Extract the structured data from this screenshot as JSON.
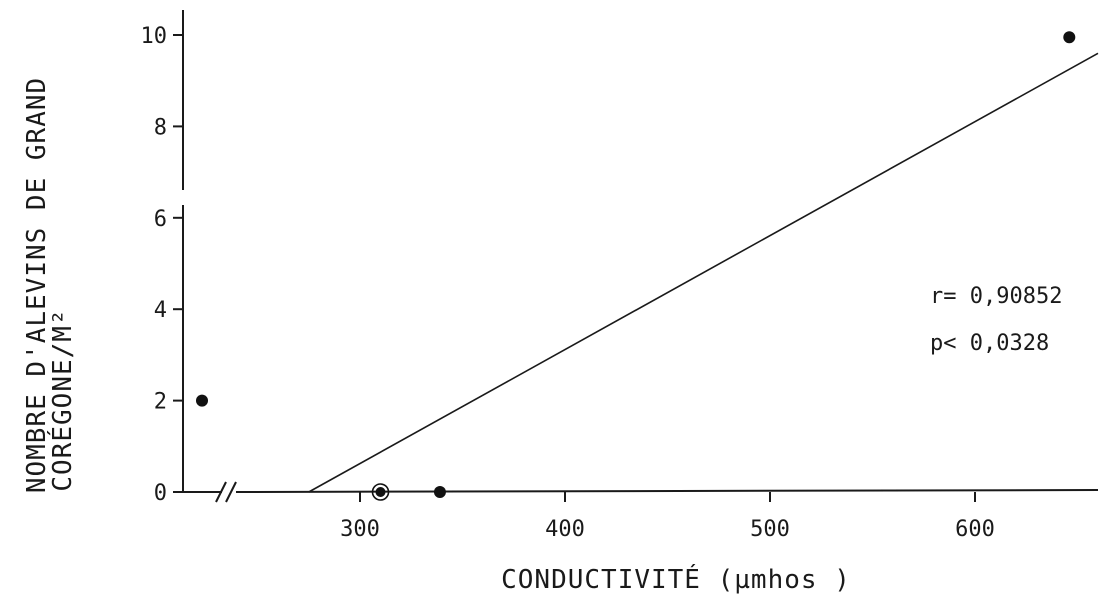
{
  "chart_data": {
    "type": "scatter",
    "xlabel": "CONDUCTIVITÉ (µmhos )",
    "ylabel_line1": "NOMBRE D'ALEVINS DE GRAND",
    "ylabel_line2": "CORÉGONE/M²",
    "x_ticks": [
      300,
      400,
      500,
      600
    ],
    "y_ticks": [
      0,
      2,
      4,
      6,
      8,
      10
    ],
    "xlim": [
      275,
      665
    ],
    "ylim": [
      0,
      10.4
    ],
    "x_axis_break": true,
    "points": [
      {
        "x": 240,
        "y": 2,
        "note": "left of axis break"
      },
      {
        "x": 310,
        "y": 0,
        "marker": "ringed"
      },
      {
        "x": 339,
        "y": 0
      },
      {
        "x": 646,
        "y": 9.95
      }
    ],
    "fit_line": {
      "x": [
        275,
        660
      ],
      "y": [
        0,
        9.6
      ]
    },
    "annotations": [
      "r= 0,90852",
      "p< 0,0328"
    ],
    "grid": false,
    "legend": "none"
  }
}
